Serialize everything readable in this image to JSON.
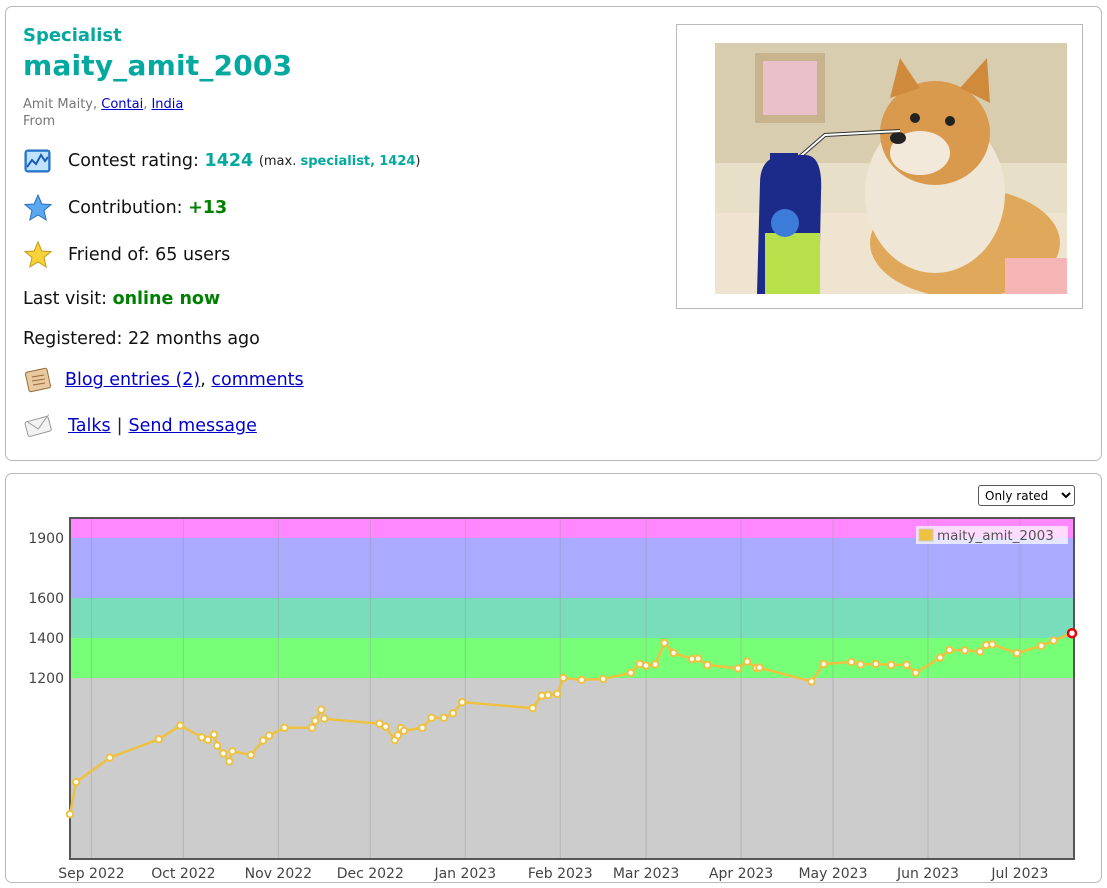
{
  "profile": {
    "rank": "Specialist",
    "handle": "maity_amit_2003",
    "name": "Amit Maity",
    "city": "Contai",
    "country": "India",
    "from_label": "From",
    "rating_label": "Contest rating:",
    "rating": "1424",
    "max_prefix": "(max.",
    "max_rank": "specialist,",
    "max_rating": "1424",
    "max_suffix": ")",
    "contribution_label": "Contribution:",
    "contribution": "+13",
    "friend_label": "Friend of:",
    "friend_count": "65 users",
    "last_visit_label": "Last visit:",
    "last_visit": "online now",
    "registered_label": "Registered:",
    "registered": "22 months ago",
    "blog_link": "Blog entries (2)",
    "comments_link": "comments",
    "talks_link": "Talks",
    "send_message_link": "Send message"
  },
  "colors": {
    "accent": "#03a89e",
    "online": "#008000",
    "link": "#0000cc",
    "series": "#edc240"
  },
  "icons": [
    "rating-graph-icon",
    "star-blue-icon",
    "star-gold-icon",
    "blog-icon",
    "envelope-icon"
  ],
  "filter": {
    "selected": "Only rated"
  },
  "chart_data": {
    "type": "line",
    "legend": "maity_amit_2003",
    "legend_position": "top-right",
    "y_ticks": [
      1200,
      1400,
      1600,
      1900
    ],
    "x_ticks": [
      "Sep 2022",
      "Oct 2022",
      "Nov 2022",
      "Dec 2022",
      "Jan 2023",
      "Feb 2023",
      "Mar 2023",
      "Apr 2023",
      "May 2023",
      "Jun 2023",
      "Jul 2023"
    ],
    "bands": [
      {
        "from": 0,
        "to": 1200,
        "color": "#cccccc"
      },
      {
        "from": 1200,
        "to": 1400,
        "color": "#77ff77"
      },
      {
        "from": 1400,
        "to": 1600,
        "color": "#77ddbb"
      },
      {
        "from": 1600,
        "to": 1900,
        "color": "#aaaaff"
      },
      {
        "from": 1900,
        "to": 2000,
        "color": "#ff88ff"
      }
    ],
    "series": [
      {
        "values": [
          [
            "2022-08-25",
            297
          ],
          [
            "2022-08-27",
            510
          ],
          [
            "2022-09-07",
            672
          ],
          [
            "2022-09-23",
            794
          ],
          [
            "2022-09-30",
            885
          ],
          [
            "2022-10-07",
            807
          ],
          [
            "2022-10-09",
            790
          ],
          [
            "2022-10-11",
            825
          ],
          [
            "2022-10-12",
            752
          ],
          [
            "2022-10-14",
            700
          ],
          [
            "2022-10-16",
            647
          ],
          [
            "2022-10-17",
            715
          ],
          [
            "2022-10-23",
            690
          ],
          [
            "2022-10-27",
            785
          ],
          [
            "2022-10-29",
            818
          ],
          [
            "2022-11-03",
            870
          ],
          [
            "2022-11-12",
            870
          ],
          [
            "2022-11-13",
            916
          ],
          [
            "2022-11-15",
            990
          ],
          [
            "2022-11-16",
            930
          ],
          [
            "2022-12-04",
            897
          ],
          [
            "2022-12-06",
            877
          ],
          [
            "2022-12-09",
            788
          ],
          [
            "2022-12-10",
            820
          ],
          [
            "2022-12-11",
            868
          ],
          [
            "2022-12-12",
            850
          ],
          [
            "2022-12-18",
            870
          ],
          [
            "2022-12-21",
            936
          ],
          [
            "2022-12-25",
            936
          ],
          [
            "2022-12-28",
            966
          ],
          [
            "2022-12-31",
            1040
          ],
          [
            "2023-01-23",
            1000
          ],
          [
            "2023-01-26",
            1083
          ],
          [
            "2023-01-28",
            1087
          ],
          [
            "2023-01-31",
            1094
          ],
          [
            "2023-02-02",
            1200
          ],
          [
            "2023-02-08",
            1188
          ],
          [
            "2023-02-15",
            1193
          ],
          [
            "2023-02-24",
            1226
          ],
          [
            "2023-02-27",
            1270
          ],
          [
            "2023-03-01",
            1262
          ],
          [
            "2023-03-04",
            1268
          ],
          [
            "2023-03-07",
            1375
          ],
          [
            "2023-03-10",
            1325
          ],
          [
            "2023-03-16",
            1295
          ],
          [
            "2023-03-18",
            1297
          ],
          [
            "2023-03-21",
            1265
          ],
          [
            "2023-03-31",
            1248
          ],
          [
            "2023-04-03",
            1282
          ],
          [
            "2023-04-06",
            1250
          ],
          [
            "2023-04-07",
            1252
          ],
          [
            "2023-04-24",
            1177
          ],
          [
            "2023-04-28",
            1270
          ],
          [
            "2023-05-07",
            1280
          ],
          [
            "2023-05-10",
            1268
          ],
          [
            "2023-05-15",
            1270
          ],
          [
            "2023-05-20",
            1265
          ],
          [
            "2023-05-25",
            1266
          ],
          [
            "2023-05-28",
            1226
          ],
          [
            "2023-06-05",
            1302
          ],
          [
            "2023-06-08",
            1340
          ],
          [
            "2023-06-13",
            1338
          ],
          [
            "2023-06-18",
            1332
          ],
          [
            "2023-06-20",
            1365
          ],
          [
            "2023-06-22",
            1368
          ],
          [
            "2023-06-30",
            1324
          ],
          [
            "2023-07-08",
            1361
          ],
          [
            "2023-07-12",
            1387
          ],
          [
            "2023-07-18",
            1424
          ]
        ]
      }
    ]
  }
}
